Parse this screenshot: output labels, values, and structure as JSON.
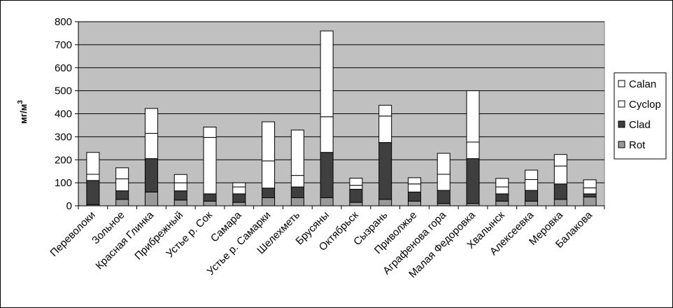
{
  "chart_data": {
    "type": "bar",
    "stacked": true,
    "ylabel": "мг/м",
    "ylabel_superscript": "3",
    "ylim": [
      0,
      800
    ],
    "yticks": [
      "0",
      "100",
      "200",
      "300",
      "400",
      "500",
      "600",
      "700",
      "800"
    ],
    "grid": true,
    "legend_position": "right",
    "categories": [
      "Переволоки",
      "Зольное",
      "Красная Глинка",
      "Прибрежный",
      "Устье р. Сок",
      "Самара",
      "Устье р. Самарки",
      "Шелехметь",
      "Брусяны",
      "Октябрьск",
      "Сызрань",
      "Приволжье",
      "Аграфенова гора",
      "Малая Федоровка",
      "Хвалынск",
      "Алексеевка",
      "Меровка",
      "Балакова"
    ],
    "series": [
      {
        "name": "Rot",
        "color": "#999999",
        "values": [
          5,
          28,
          60,
          25,
          20,
          15,
          35,
          35,
          35,
          15,
          28,
          20,
          10,
          10,
          20,
          20,
          28,
          38
        ]
      },
      {
        "name": "Clad",
        "color": "#3f3f3f",
        "values": [
          105,
          37,
          145,
          40,
          32,
          37,
          42,
          47,
          197,
          57,
          247,
          40,
          57,
          195,
          32,
          47,
          67,
          14
        ]
      },
      {
        "name": "Cyclop",
        "color": "#ffffff",
        "values": [
          27,
          52,
          110,
          35,
          245,
          30,
          118,
          50,
          155,
          17,
          115,
          35,
          70,
          72,
          30,
          47,
          78,
          26
        ]
      },
      {
        "name": "Calan",
        "color": "#ffffff",
        "values": [
          95,
          48,
          108,
          36,
          45,
          18,
          170,
          197,
          373,
          31,
          47,
          27,
          91,
          223,
          37,
          41,
          50,
          35
        ]
      }
    ]
  }
}
